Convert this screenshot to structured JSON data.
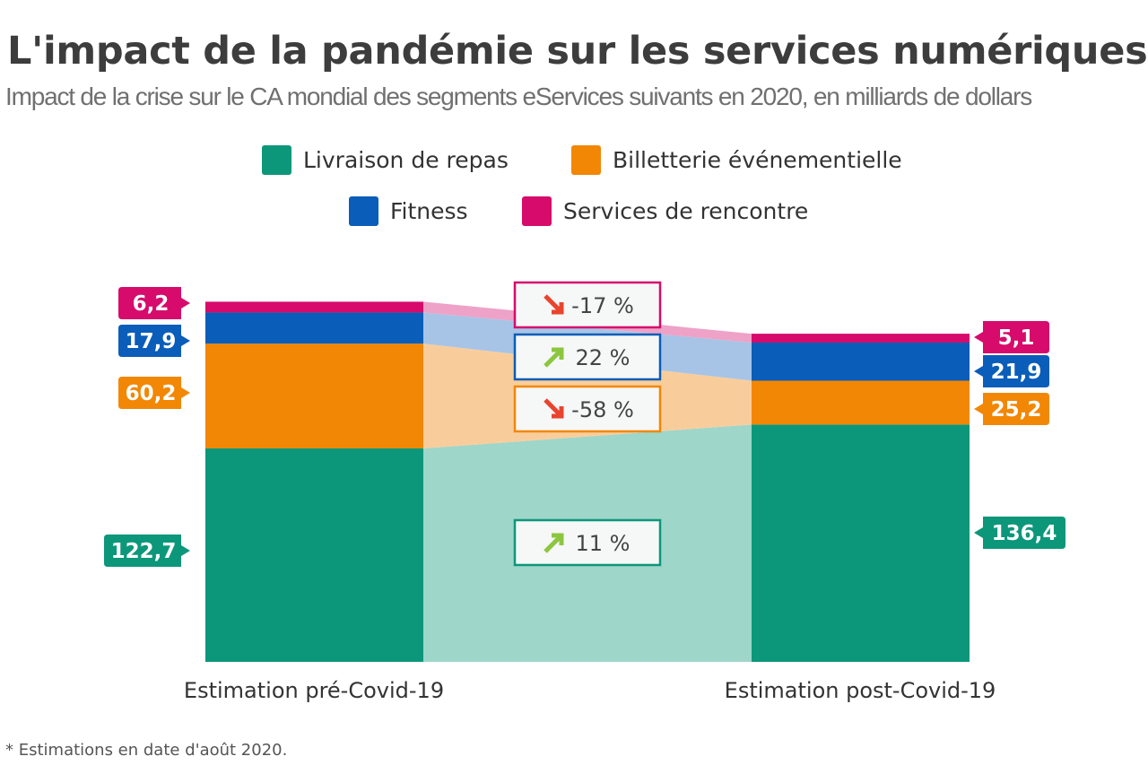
{
  "title": "L'impact de la pandémie sur les services numériques",
  "subtitle": "Impact de la crise sur le CA mondial des segments eServices suivants en 2020, en milliards de dollars",
  "footnote": "* Estimations en date d'août 2020.",
  "chart_data": {
    "type": "bar",
    "stacked": true,
    "categories": [
      "Estimation pré-Covid-19",
      "Estimation post-Covid-19"
    ],
    "series": [
      {
        "name": "Livraison de repas",
        "color": "#0c977a",
        "light_color": "#9ed6c9",
        "values": [
          122.7,
          136.4
        ],
        "labels": [
          "122,7",
          "136,4"
        ],
        "change": {
          "label": "11 %",
          "direction": "up"
        }
      },
      {
        "name": "Billetterie événementielle",
        "color": "#f28705",
        "light_color": "#f9cd9b",
        "values": [
          60.2,
          25.2
        ],
        "labels": [
          "60,2",
          "25,2"
        ],
        "change": {
          "label": "-58 %",
          "direction": "down"
        }
      },
      {
        "name": "Fitness",
        "color": "#0a5db8",
        "light_color": "#a7c4e6",
        "values": [
          17.9,
          21.9
        ],
        "labels": [
          "17,9",
          "21,9"
        ],
        "change": {
          "label": "22 %",
          "direction": "up"
        }
      },
      {
        "name": "Services de rencontre",
        "color": "#d60b6c",
        "light_color": "#eea2c8",
        "values": [
          6.2,
          5.1
        ],
        "labels": [
          "6,2",
          "5,1"
        ],
        "change": {
          "label": "-17 %",
          "direction": "down"
        }
      }
    ],
    "arrow_colors": {
      "up": "#8cc63f",
      "down": "#e8442e"
    },
    "legend_position": "top",
    "grid": false
  }
}
